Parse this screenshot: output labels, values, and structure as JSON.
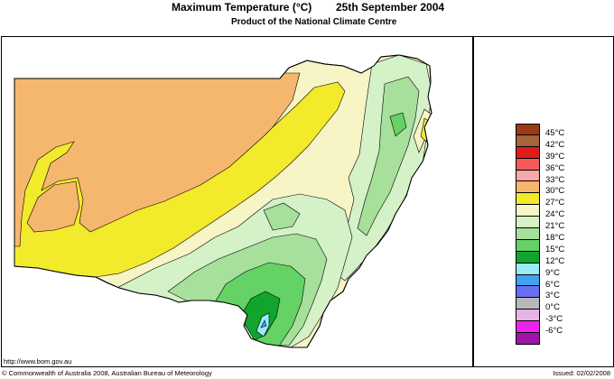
{
  "header": {
    "title": "Maximum Temperature (°C)",
    "date": "25th September 2004",
    "subtitle": "Product of the National Climate Centre"
  },
  "legend": [
    {
      "label": "45°C",
      "color": "#9b3b12"
    },
    {
      "label": "42°C",
      "color": "#a5643a"
    },
    {
      "label": "39°C",
      "color": "#e31a1c"
    },
    {
      "label": "36°C",
      "color": "#f55a5a"
    },
    {
      "label": "33°C",
      "color": "#f8a8a8"
    },
    {
      "label": "30°C",
      "color": "#f5b66e"
    },
    {
      "label": "27°C",
      "color": "#f2ea2a"
    },
    {
      "label": "24°C",
      "color": "#f7f4c6"
    },
    {
      "label": "21°C",
      "color": "#d5f1c8"
    },
    {
      "label": "18°C",
      "color": "#a6e09a"
    },
    {
      "label": "15°C",
      "color": "#64d264"
    },
    {
      "label": "12°C",
      "color": "#12a52e"
    },
    {
      "label": "9°C",
      "color": "#99ecf4"
    },
    {
      "label": "6°C",
      "color": "#3fa4f0"
    },
    {
      "label": "3°C",
      "color": "#6a6ef0"
    },
    {
      "label": "0°C",
      "color": "#b8b8b8"
    },
    {
      "label": "-3°C",
      "color": "#e8b4e6"
    },
    {
      "label": "-6°C",
      "color": "#ee22ee"
    },
    {
      "label": "",
      "color": "#a012a8"
    }
  ],
  "footer": {
    "url": "http://www.bom.gov.au",
    "copyright": "© Commonwealth of Australia 2008, Australian Bureau of Meteorology",
    "issued": "Issued: 02/02/2008"
  }
}
